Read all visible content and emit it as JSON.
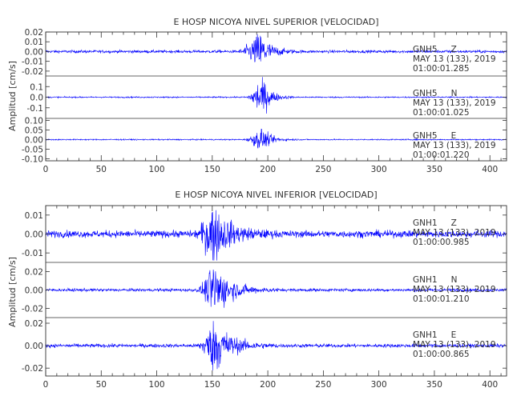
{
  "chart_data": [
    {
      "type": "line",
      "title": "E HOSP NICOYA NIVEL SUPERIOR [VELOCIDAD]",
      "ylabel": "Amplitud [cm/s]",
      "xlim": [
        0,
        415
      ],
      "xticks": [
        "0",
        "50",
        "100",
        "150",
        "200",
        "250",
        "300",
        "350",
        "400"
      ],
      "line_color": "#0000ff",
      "traces": [
        {
          "station": "GNH5",
          "component": "Z",
          "date": "MAY 13 (133), 2019",
          "time": "01:00:01.285",
          "ylim": [
            -0.025,
            0.02
          ],
          "yticks": [
            "0.02",
            "0.01",
            "0.00",
            "-0.01",
            "-0.02"
          ],
          "yticks_values": [
            0.02,
            0.01,
            0.0,
            -0.01,
            -0.02
          ],
          "noise": 0.0007,
          "peak": 0.018,
          "event_start": 172,
          "event_peak": 193,
          "event_end": 230
        },
        {
          "station": "GNH5",
          "component": "N",
          "date": "MAY 13 (133), 2019",
          "time": "01:00:01.025",
          "ylim": [
            -0.2,
            0.2
          ],
          "yticks": [
            "0.1",
            "0.0",
            "-0.1"
          ],
          "yticks_values": [
            0.1,
            0.0,
            -0.1
          ],
          "noise": 0.003,
          "peak": 0.19,
          "event_start": 180,
          "event_peak": 194,
          "event_end": 225
        },
        {
          "station": "GNH5",
          "component": "E",
          "date": "MAY 13 (133), 2019",
          "time": "01:00:01.220",
          "ylim": [
            -0.11,
            0.11
          ],
          "yticks": [
            "0.10",
            "0.05",
            "0.00",
            "-0.05",
            "-0.10"
          ],
          "yticks_values": [
            0.1,
            0.05,
            0.0,
            -0.05,
            -0.1
          ],
          "noise": 0.0015,
          "peak": 0.055,
          "event_start": 178,
          "event_peak": 194,
          "event_end": 228
        }
      ]
    },
    {
      "type": "line",
      "title": "E HOSP NICOYA NIVEL INFERIOR [VELOCIDAD]",
      "ylabel": "Amplitud [cm/s]",
      "xlim": [
        0,
        415
      ],
      "xticks": [
        "0",
        "50",
        "100",
        "150",
        "200",
        "250",
        "300",
        "350",
        "400"
      ],
      "line_color": "#0000ff",
      "traces": [
        {
          "station": "GNH1",
          "component": "Z",
          "date": "MAY 13 (133), 2019",
          "time": "01:00:00.985",
          "ylim": [
            -0.015,
            0.015
          ],
          "yticks": [
            "0.01",
            "0.00",
            "-0.01"
          ],
          "yticks_values": [
            0.01,
            0.0,
            -0.01
          ],
          "noise": 0.0009,
          "peak": 0.014,
          "event_start": 133,
          "event_peak": 150,
          "event_end": 210
        },
        {
          "station": "GNH1",
          "component": "N",
          "date": "MAY 13 (133), 2019",
          "time": "01:00:01.210",
          "ylim": [
            -0.03,
            0.03
          ],
          "yticks": [
            "0.02",
            "0.00",
            "-0.02"
          ],
          "yticks_values": [
            0.02,
            0.0,
            -0.02
          ],
          "noise": 0.0008,
          "peak": 0.027,
          "event_start": 135,
          "event_peak": 152,
          "event_end": 210
        },
        {
          "station": "GNH1",
          "component": "E",
          "date": "MAY 13 (133), 2019",
          "time": "01:00:00.865",
          "ylim": [
            -0.027,
            0.025
          ],
          "yticks": [
            "0.02",
            "0.00",
            "-0.02"
          ],
          "yticks_values": [
            0.02,
            0.0,
            -0.02
          ],
          "noise": 0.0008,
          "peak": 0.022,
          "event_start": 135,
          "event_peak": 152,
          "event_end": 210
        }
      ]
    }
  ]
}
